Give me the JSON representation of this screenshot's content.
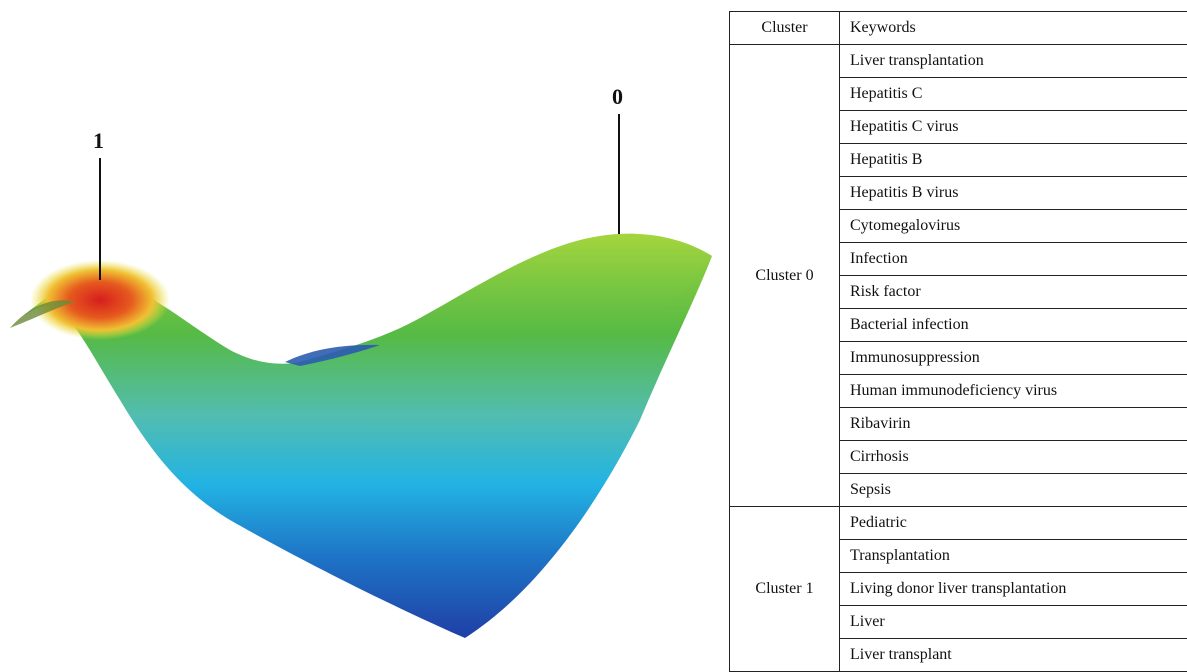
{
  "surface": {
    "peak_labels": {
      "left": "1",
      "right": "0"
    },
    "colormap": [
      "#1f3fa6",
      "#1e6ec4",
      "#22b2e0",
      "#5cc1b8",
      "#4db84a",
      "#93cf3c",
      "#e5e63b",
      "#e9781f",
      "#d81f1f"
    ]
  },
  "table": {
    "headers": {
      "cluster": "Cluster",
      "keywords": "Keywords"
    },
    "groups": [
      {
        "cluster": "Cluster 0",
        "keywords": [
          "Liver transplantation",
          "Hepatitis C",
          "Hepatitis C virus",
          "Hepatitis B",
          "Hepatitis B virus",
          "Cytomegalovirus",
          "Infection",
          "Risk factor",
          "Bacterial infection",
          "Immunosuppression",
          "Human immunodeficiency virus",
          "Ribavirin",
          "Cirrhosis",
          "Sepsis"
        ]
      },
      {
        "cluster": "Cluster 1",
        "keywords": [
          "Pediatric",
          "Transplantation",
          "Living donor liver transplantation",
          "Liver",
          "Liver transplant"
        ]
      }
    ]
  }
}
